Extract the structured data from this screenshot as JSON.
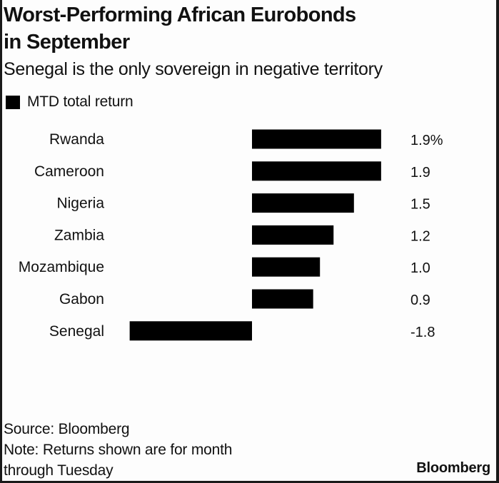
{
  "chart_data": {
    "type": "bar",
    "orientation": "horizontal",
    "title": "Worst-Performing African Eurobonds in September",
    "title_lines": [
      "Worst-Performing African Eurobonds",
      "in September"
    ],
    "subtitle": "Senegal is the only sovereign in negative territory",
    "legend": [
      {
        "name": "MTD total return",
        "color": "#000000"
      }
    ],
    "categories": [
      "Rwanda",
      "Cameroon",
      "Nigeria",
      "Zambia",
      "Mozambique",
      "Gabon",
      "Senegal"
    ],
    "series": [
      {
        "name": "MTD total return",
        "unit": "%",
        "values": [
          1.9,
          1.9,
          1.5,
          1.2,
          1.0,
          0.9,
          -1.8
        ]
      }
    ],
    "value_labels": [
      "1.9%",
      "1.9",
      "1.5",
      "1.2",
      "1.0",
      "0.9",
      "-1.8"
    ],
    "xlabel": "",
    "ylabel": "",
    "xlim": [
      -1.8,
      1.9
    ],
    "grid": false,
    "legend_position": "top-left",
    "bar_color": "#000000"
  },
  "footer": {
    "source": "Source: Bloomberg",
    "note_lines": [
      "Note: Returns shown are for month",
      "through Tuesday"
    ],
    "logo": "Bloomberg"
  }
}
